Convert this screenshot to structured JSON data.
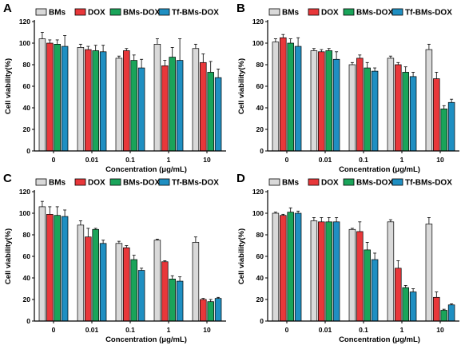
{
  "chart_data": [
    {
      "type": "bar",
      "panel_label": "A",
      "categories": [
        "0",
        "0.01",
        "0.1",
        "1",
        "10"
      ],
      "series": [
        {
          "name": "BMs",
          "values": [
            104,
            96,
            86,
            99,
            95
          ],
          "errors": [
            6,
            3,
            2,
            5,
            4
          ]
        },
        {
          "name": "DOX",
          "values": [
            100,
            94,
            93,
            79,
            82
          ],
          "errors": [
            3,
            3,
            2,
            5,
            8
          ]
        },
        {
          "name": "BMs-DOX",
          "values": [
            99,
            93,
            84,
            87,
            73
          ],
          "errors": [
            4,
            5,
            5,
            9,
            10
          ]
        },
        {
          "name": "Tf-BMs-DOX",
          "values": [
            97,
            92,
            77,
            84,
            68
          ],
          "errors": [
            10,
            6,
            8,
            20,
            8
          ]
        }
      ],
      "xlabel": "Concentration (μg/mL)",
      "ylabel": "Cell viability(%)",
      "ylim": [
        0,
        120
      ],
      "yticks": [
        0,
        20,
        40,
        60,
        80,
        100,
        120
      ],
      "legend_position": "top"
    },
    {
      "type": "bar",
      "panel_label": "B",
      "categories": [
        "0",
        "0.01",
        "0.1",
        "1",
        "10"
      ],
      "series": [
        {
          "name": "BMs",
          "values": [
            101,
            93,
            80,
            86,
            94
          ],
          "errors": [
            3,
            2,
            2,
            2,
            5
          ]
        },
        {
          "name": "DOX",
          "values": [
            105,
            92,
            86,
            80,
            67
          ],
          "errors": [
            3,
            2,
            3,
            2,
            6
          ]
        },
        {
          "name": "BMs-DOX",
          "values": [
            100,
            93,
            77,
            73,
            39
          ],
          "errors": [
            4,
            2,
            5,
            5,
            3
          ]
        },
        {
          "name": "Tf-BMs-DOX",
          "values": [
            97,
            85,
            74,
            69,
            45
          ],
          "errors": [
            8,
            7,
            3,
            4,
            3
          ]
        }
      ],
      "xlabel": "Concentration (μg/mL)",
      "ylabel": "Cell viability(%)",
      "ylim": [
        0,
        120
      ],
      "yticks": [
        0,
        20,
        40,
        60,
        80,
        100,
        120
      ],
      "legend_position": "top"
    },
    {
      "type": "bar",
      "panel_label": "C",
      "categories": [
        "0",
        "0.01",
        "0.1",
        "1",
        "10"
      ],
      "series": [
        {
          "name": "BMs",
          "values": [
            106,
            89,
            72,
            75,
            73
          ],
          "errors": [
            5,
            4,
            2,
            1,
            5
          ]
        },
        {
          "name": "DOX",
          "values": [
            99,
            78,
            68,
            55,
            20
          ],
          "errors": [
            7,
            8,
            2,
            1,
            1
          ]
        },
        {
          "name": "BMs-DOX",
          "values": [
            98,
            85,
            57,
            39,
            18
          ],
          "errors": [
            8,
            1,
            4,
            3,
            2
          ]
        },
        {
          "name": "Tf-BMs-DOX",
          "values": [
            97,
            72,
            47,
            37,
            21
          ],
          "errors": [
            6,
            3,
            2,
            4,
            1
          ]
        }
      ],
      "xlabel": "Concentration (μg/mL)",
      "ylabel": "Cell viability(%)",
      "ylim": [
        0,
        120
      ],
      "yticks": [
        0,
        20,
        40,
        60,
        80,
        100,
        120
      ],
      "legend_position": "top"
    },
    {
      "type": "bar",
      "panel_label": "D",
      "categories": [
        "0",
        "0.01",
        "0.1",
        "1",
        "10"
      ],
      "series": [
        {
          "name": "BMs",
          "values": [
            100,
            93,
            85,
            92,
            90
          ],
          "errors": [
            1,
            3,
            1,
            2,
            6
          ]
        },
        {
          "name": "DOX",
          "values": [
            98,
            92,
            83,
            49,
            22
          ],
          "errors": [
            1,
            4,
            9,
            7,
            5
          ]
        },
        {
          "name": "BMs-DOX",
          "values": [
            101,
            92,
            66,
            31,
            10
          ],
          "errors": [
            4,
            4,
            7,
            2,
            1
          ]
        },
        {
          "name": "Tf-BMs-DOX",
          "values": [
            100,
            92,
            57,
            27,
            15
          ],
          "errors": [
            2,
            4,
            6,
            3,
            1
          ]
        }
      ],
      "xlabel": "Concentration (μg/mL)",
      "ylabel": "Cell viability(%)",
      "ylim": [
        0,
        120
      ],
      "yticks": [
        0,
        20,
        40,
        60,
        80,
        100,
        120
      ],
      "legend_position": "top"
    }
  ],
  "colors": {
    "BMs": "#d9d9d9",
    "DOX": "#e8373a",
    "BMs-DOX": "#1aa45a",
    "Tf-BMs-DOX": "#1f8fc2"
  }
}
